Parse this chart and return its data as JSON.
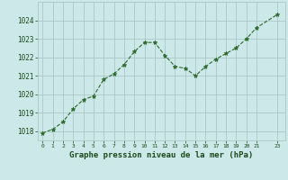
{
  "x": [
    0,
    1,
    2,
    3,
    4,
    5,
    6,
    7,
    8,
    9,
    10,
    11,
    12,
    13,
    14,
    15,
    16,
    17,
    18,
    19,
    20,
    21,
    23
  ],
  "y": [
    1017.9,
    1018.1,
    1018.5,
    1019.2,
    1019.7,
    1019.9,
    1020.8,
    1021.1,
    1021.6,
    1022.3,
    1022.8,
    1022.8,
    1022.1,
    1021.5,
    1021.4,
    1021.0,
    1021.5,
    1021.9,
    1022.2,
    1022.5,
    1023.0,
    1023.6,
    1024.3
  ],
  "line_color": "#2d6a2d",
  "marker": "*",
  "marker_size": 3.5,
  "bg_color": "#cce8e8",
  "grid_color": "#aac8c8",
  "xlabel": "Graphe pression niveau de la mer (hPa)",
  "xlabel_color": "#1a4a1a",
  "tick_color": "#1a4a1a",
  "ytick_labels": [
    1018,
    1019,
    1020,
    1021,
    1022,
    1023,
    1024
  ],
  "xtick_labels": [
    0,
    1,
    2,
    3,
    4,
    5,
    6,
    7,
    8,
    9,
    10,
    11,
    12,
    13,
    14,
    15,
    16,
    17,
    18,
    19,
    20,
    21,
    23
  ],
  "ylim_min": 1017.5,
  "ylim_max": 1025.0,
  "xlim_min": -0.5,
  "xlim_max": 23.8
}
